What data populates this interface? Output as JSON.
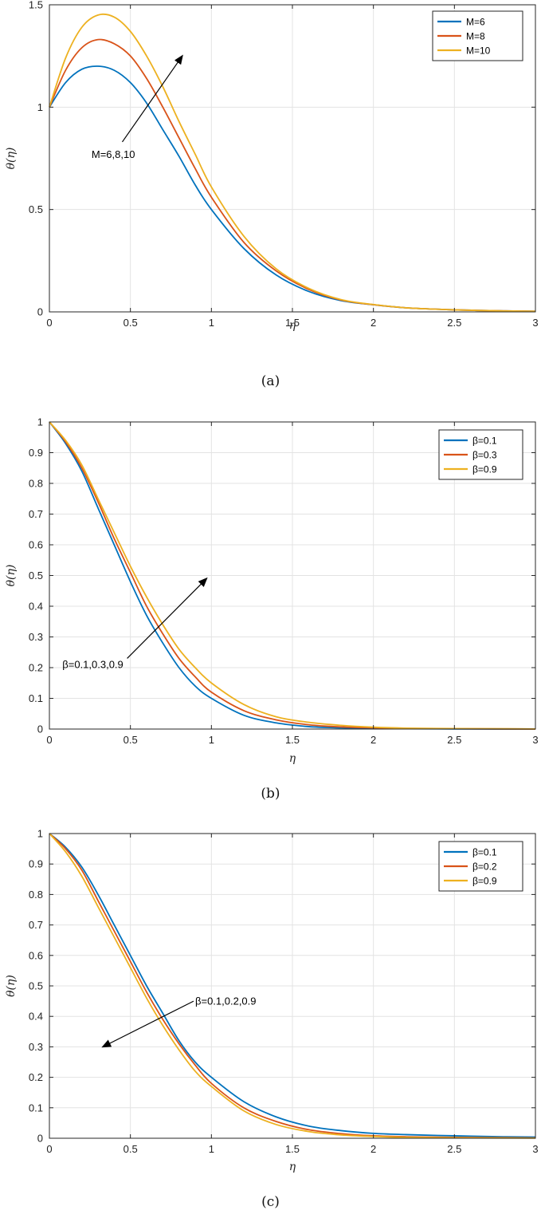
{
  "colors": {
    "series1": "#0072BD",
    "series2": "#D95319",
    "series3": "#EDB120"
  },
  "chart_data": [
    {
      "type": "line",
      "sublabel": "(a)",
      "xlabel": "η",
      "ylabel": "θ(η)",
      "xlim": [
        0,
        3
      ],
      "ylim": [
        0,
        1.5
      ],
      "xticks": [
        0,
        0.5,
        1,
        1.5,
        2,
        2.5,
        3
      ],
      "xtick_labels": [
        "0",
        "0.5",
        "1",
        "1.5",
        "2",
        "2.5",
        "3"
      ],
      "yticks": [
        0,
        0.5,
        1,
        1.5
      ],
      "ytick_labels": [
        "0",
        "0.5",
        "1",
        "1.5"
      ],
      "grid": true,
      "legend_position": "top-right",
      "x": [
        0,
        0.1,
        0.2,
        0.3,
        0.4,
        0.5,
        0.6,
        0.7,
        0.8,
        0.9,
        1.0,
        1.2,
        1.4,
        1.6,
        1.8,
        2.0,
        2.2,
        2.5,
        2.8,
        3.0
      ],
      "series": [
        {
          "name": "M=6",
          "values": [
            1.0,
            1.12,
            1.185,
            1.2,
            1.18,
            1.12,
            1.02,
            0.89,
            0.76,
            0.62,
            0.5,
            0.31,
            0.18,
            0.1,
            0.055,
            0.035,
            0.02,
            0.01,
            0.005,
            0.003
          ]
        },
        {
          "name": "M=8",
          "values": [
            1.0,
            1.18,
            1.29,
            1.33,
            1.31,
            1.25,
            1.14,
            1.0,
            0.85,
            0.7,
            0.56,
            0.34,
            0.2,
            0.11,
            0.058,
            0.035,
            0.02,
            0.01,
            0.005,
            0.003
          ]
        },
        {
          "name": "M=10",
          "values": [
            1.0,
            1.24,
            1.39,
            1.45,
            1.44,
            1.37,
            1.25,
            1.1,
            0.93,
            0.77,
            0.61,
            0.37,
            0.21,
            0.115,
            0.06,
            0.036,
            0.02,
            0.01,
            0.005,
            0.003
          ]
        }
      ],
      "annotation": {
        "text": "M=6,8,10",
        "arrow_from": [
          0.45,
          0.83
        ],
        "arrow_to": [
          0.82,
          1.25
        ],
        "text_at": [
          0.26,
          0.77
        ]
      }
    },
    {
      "type": "line",
      "sublabel": "(b)",
      "xlabel": "η",
      "ylabel": "θ(η)",
      "xlim": [
        0,
        3
      ],
      "ylim": [
        0,
        1
      ],
      "xticks": [
        0,
        0.5,
        1,
        1.5,
        2,
        2.5,
        3
      ],
      "xtick_labels": [
        "0",
        "0.5",
        "1",
        "1.5",
        "2",
        "2.5",
        "3"
      ],
      "yticks": [
        0,
        0.1,
        0.2,
        0.3,
        0.4,
        0.5,
        0.6,
        0.7,
        0.8,
        0.9,
        1
      ],
      "ytick_labels": [
        "0",
        "0.1",
        "0.2",
        "0.3",
        "0.4",
        "0.5",
        "0.6",
        "0.7",
        "0.8",
        "0.9",
        "1"
      ],
      "grid": true,
      "legend_position": "top-right",
      "x": [
        0,
        0.1,
        0.2,
        0.3,
        0.4,
        0.5,
        0.6,
        0.7,
        0.8,
        0.9,
        1.0,
        1.2,
        1.4,
        1.6,
        1.8,
        2.0,
        2.2,
        2.5,
        2.8,
        3.0
      ],
      "series": [
        {
          "name": "β=0.1",
          "values": [
            1.0,
            0.93,
            0.84,
            0.72,
            0.6,
            0.48,
            0.37,
            0.28,
            0.2,
            0.14,
            0.1,
            0.045,
            0.02,
            0.008,
            0.004,
            0.002,
            0.001,
            0.0005,
            0.0002,
            0.0001
          ]
        },
        {
          "name": "β=0.3",
          "values": [
            1.0,
            0.935,
            0.85,
            0.74,
            0.62,
            0.51,
            0.4,
            0.31,
            0.23,
            0.17,
            0.12,
            0.06,
            0.03,
            0.014,
            0.007,
            0.004,
            0.002,
            0.001,
            0.0005,
            0.0002
          ]
        },
        {
          "name": "β=0.9",
          "values": [
            1.0,
            0.94,
            0.86,
            0.75,
            0.64,
            0.53,
            0.43,
            0.34,
            0.26,
            0.2,
            0.15,
            0.08,
            0.04,
            0.022,
            0.012,
            0.006,
            0.003,
            0.0015,
            0.0008,
            0.0004
          ]
        }
      ],
      "annotation": {
        "text": "β=0.1,0.3,0.9",
        "arrow_from": [
          0.48,
          0.23
        ],
        "arrow_to": [
          0.97,
          0.49
        ],
        "text_at": [
          0.08,
          0.21
        ]
      }
    },
    {
      "type": "line",
      "sublabel": "(c)",
      "xlabel": "η",
      "ylabel": "θ(η)",
      "xlim": [
        0,
        3
      ],
      "ylim": [
        0,
        1
      ],
      "xticks": [
        0,
        0.5,
        1,
        1.5,
        2,
        2.5,
        3
      ],
      "xtick_labels": [
        "0",
        "0.5",
        "1",
        "1.5",
        "2",
        "2.5",
        "3"
      ],
      "yticks": [
        0,
        0.1,
        0.2,
        0.3,
        0.4,
        0.5,
        0.6,
        0.7,
        0.8,
        0.9,
        1
      ],
      "ytick_labels": [
        "0",
        "0.1",
        "0.2",
        "0.3",
        "0.4",
        "0.5",
        "0.6",
        "0.7",
        "0.8",
        "0.9",
        "1"
      ],
      "grid": true,
      "legend_position": "top-right",
      "x": [
        0,
        0.1,
        0.2,
        0.3,
        0.4,
        0.5,
        0.6,
        0.7,
        0.8,
        0.9,
        1.0,
        1.2,
        1.4,
        1.6,
        1.8,
        2.0,
        2.2,
        2.5,
        2.8,
        3.0
      ],
      "series": [
        {
          "name": "β=0.1",
          "values": [
            1.0,
            0.955,
            0.89,
            0.8,
            0.7,
            0.6,
            0.5,
            0.41,
            0.32,
            0.25,
            0.2,
            0.12,
            0.07,
            0.04,
            0.025,
            0.016,
            0.012,
            0.008,
            0.005,
            0.004
          ]
        },
        {
          "name": "β=0.2",
          "values": [
            1.0,
            0.95,
            0.88,
            0.78,
            0.68,
            0.58,
            0.48,
            0.39,
            0.31,
            0.24,
            0.18,
            0.1,
            0.055,
            0.028,
            0.015,
            0.008,
            0.005,
            0.003,
            0.002,
            0.001
          ]
        },
        {
          "name": "β=0.9",
          "values": [
            1.0,
            0.94,
            0.86,
            0.76,
            0.66,
            0.56,
            0.46,
            0.37,
            0.29,
            0.22,
            0.17,
            0.09,
            0.045,
            0.022,
            0.011,
            0.006,
            0.003,
            0.0015,
            0.0008,
            0.0004
          ]
        }
      ],
      "annotation": {
        "text": "β=0.1,0.2,0.9",
        "arrow_from": [
          0.89,
          0.45
        ],
        "arrow_to": [
          0.33,
          0.3
        ],
        "text_at": [
          0.9,
          0.45
        ]
      }
    }
  ]
}
